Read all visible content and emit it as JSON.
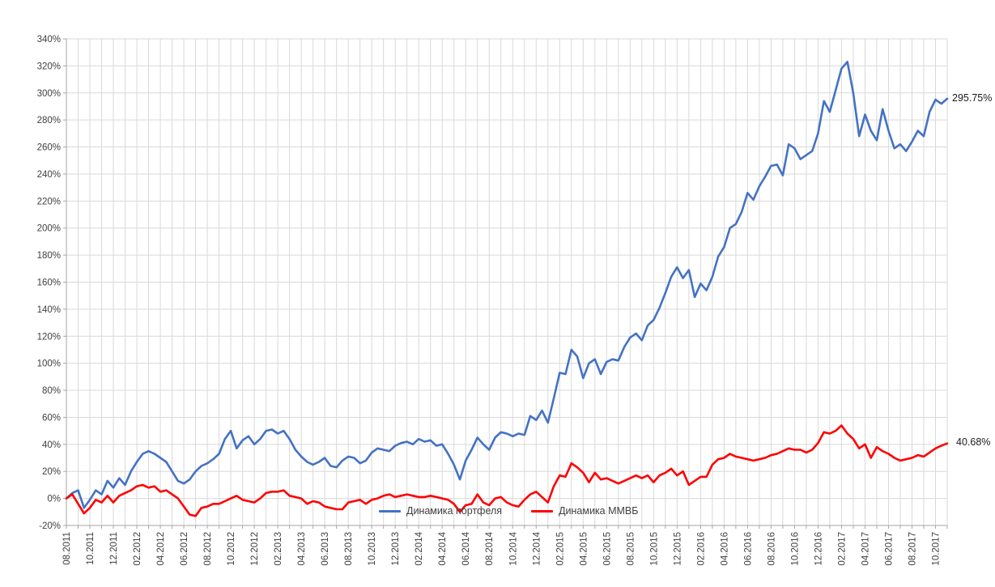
{
  "chart_data": {
    "type": "line",
    "title": "",
    "grid": true,
    "legend_position": "bottom-center-inside",
    "x_axis": {
      "months_span": 75,
      "points_per_month": 2,
      "tick_labels": [
        "08.2011",
        "10.2011",
        "12.2011",
        "02.2012",
        "04.2012",
        "06.2012",
        "08.2012",
        "10.2012",
        "12.2012",
        "02.2013",
        "04.2013",
        "06.2013",
        "08.2013",
        "10.2013",
        "12.2013",
        "02.2014",
        "04.2014",
        "06.2014",
        "08.2014",
        "10.2014",
        "12.2014",
        "02.2015",
        "04.2015",
        "06.2015",
        "08.2015",
        "10.2015",
        "12.2015",
        "02.2016",
        "04.2016",
        "06.2016",
        "08.2016",
        "10.2016",
        "12.2016",
        "02.2017",
        "04.2017",
        "06.2017",
        "08.2017",
        "10.2017"
      ]
    },
    "y_axis": {
      "min": -20,
      "max": 340,
      "step": 20,
      "unit": "%",
      "tick_labels": [
        "340%",
        "320%",
        "300%",
        "280%",
        "260%",
        "240%",
        "220%",
        "200%",
        "180%",
        "160%",
        "140%",
        "120%",
        "100%",
        "80%",
        "60%",
        "40%",
        "20%",
        "0%",
        "-20%"
      ]
    },
    "series": [
      {
        "name": "Динамика портфеля",
        "color": "#4472C4",
        "end_label": "295.75%",
        "values": [
          0,
          4,
          6,
          -7,
          -1,
          6,
          3,
          13,
          8,
          15,
          10,
          20,
          27,
          33,
          35,
          33,
          30,
          27,
          20,
          13,
          11,
          14,
          20,
          24,
          26,
          29,
          33,
          44,
          50,
          37,
          43,
          46,
          40,
          44,
          50,
          51,
          48,
          50,
          44,
          36,
          31,
          27,
          25,
          27,
          30,
          24,
          23,
          28,
          31,
          30,
          26,
          28,
          34,
          37,
          36,
          35,
          39,
          41,
          42,
          40,
          44,
          42,
          43,
          39,
          40,
          33,
          25,
          14,
          28,
          36,
          45,
          40,
          36,
          45,
          49,
          48,
          46,
          48,
          47,
          61,
          58,
          65,
          56,
          74,
          93,
          92,
          110,
          105,
          89,
          100,
          103,
          92,
          101,
          103,
          102,
          112,
          119,
          122,
          117,
          128,
          132,
          141,
          152,
          164,
          171,
          163,
          169,
          149,
          159,
          154,
          164,
          179,
          186,
          200,
          203,
          212,
          226,
          221,
          231,
          238,
          246,
          247,
          239,
          262,
          259,
          251,
          254,
          257,
          270,
          294,
          286,
          302,
          318,
          323,
          300,
          268,
          284,
          272,
          265,
          288,
          272,
          259,
          262,
          257,
          264,
          272,
          268,
          286,
          295,
          292,
          295.75
        ]
      },
      {
        "name": "Динамика ММВБ",
        "color": "#FF0000",
        "end_label": "40.68%",
        "values": [
          0,
          3,
          -4,
          -11,
          -7,
          -1,
          -3,
          2,
          -3,
          2,
          4,
          6,
          9,
          10,
          8,
          9,
          5,
          6,
          3,
          0,
          -6,
          -12,
          -13,
          -7,
          -6,
          -4,
          -4,
          -2,
          0,
          2,
          -1,
          -2,
          -3,
          0,
          4,
          5,
          5,
          6,
          2,
          1,
          0,
          -4,
          -2,
          -3,
          -6,
          -7,
          -8,
          -8,
          -3,
          -2,
          -1,
          -4,
          -1,
          0,
          2,
          3,
          1,
          2,
          3,
          2,
          1,
          1,
          2,
          1,
          0,
          -1,
          -4,
          -10,
          -5,
          -4,
          3,
          -3,
          -5,
          0,
          1,
          -3,
          -5,
          -6,
          -1,
          3,
          5,
          1,
          -3,
          9,
          17,
          16,
          26,
          23,
          19,
          12,
          19,
          14,
          15,
          13,
          11,
          13,
          15,
          17,
          15,
          17,
          12,
          17,
          19,
          22,
          17,
          20,
          10,
          13,
          16,
          16,
          25,
          29,
          30,
          33,
          31,
          30,
          29,
          28,
          29,
          30,
          32,
          33,
          35,
          37,
          36,
          36,
          34,
          36,
          41,
          49,
          48,
          50,
          54,
          48,
          44,
          37,
          40,
          30,
          38,
          35,
          33,
          30,
          28,
          29,
          30,
          32,
          31,
          34,
          37,
          39,
          40.68
        ]
      }
    ]
  },
  "styles": {
    "background": "#FFFFFF",
    "gridline_color": "#D9D9D9",
    "axis_color": "#A6A6A6",
    "tick_label_color": "#3f3f3f",
    "annotation_color": "#1A1A1A"
  }
}
